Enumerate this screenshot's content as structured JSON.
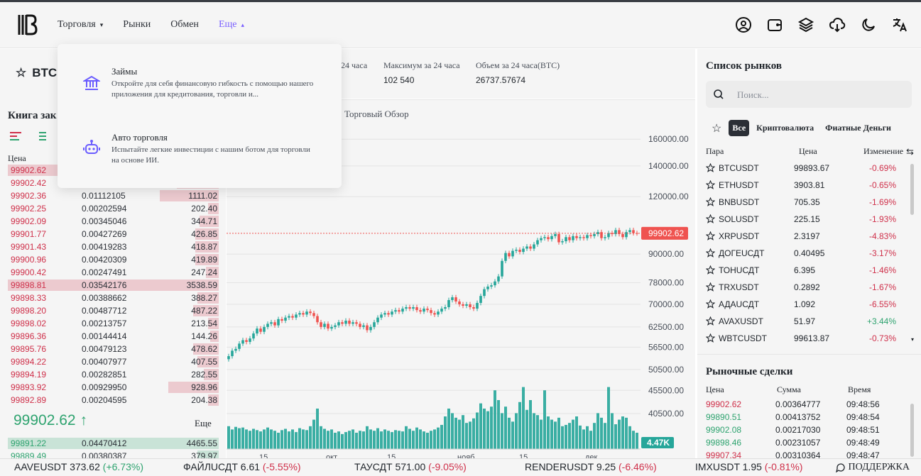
{
  "header": {
    "nav": [
      {
        "label": "Торговля",
        "chevron": "▾"
      },
      {
        "label": "Рынки"
      },
      {
        "label": "Обмен"
      },
      {
        "label": "Еще",
        "chevron": "▴"
      }
    ],
    "icons": [
      "user-circle-icon",
      "wallet-icon",
      "layers-icon",
      "cloud-download-icon",
      "moon-icon",
      "translate-icon"
    ]
  },
  "dropdown": {
    "items": [
      {
        "title": "Займы",
        "desc": "Откройте для себя финансовую гибкость с помощью нашего приложения для кредитования, торговли и..."
      },
      {
        "title": "Авто торговля",
        "desc": "Испытайте легкие инвестиции с нашим ботом для торговли на основе ИИ."
      }
    ]
  },
  "pair": {
    "name": "BTC"
  },
  "stats": [
    {
      "label": "24 часа",
      "value": ""
    },
    {
      "label": "Максимум за 24 часа",
      "value": "102 540"
    },
    {
      "label": "Объем за 24 часа(BTC)",
      "value": "26737.57674"
    }
  ],
  "orderbook": {
    "title": "Книга зак",
    "price_header": "Цена",
    "asks": [
      {
        "price": "99902.62",
        "amount": "",
        "total": "",
        "bar": 1.0
      },
      {
        "price": "99902.42",
        "amount": "",
        "total": "",
        "bar": 0.2
      },
      {
        "price": "99902.36",
        "amount": "0.01112105",
        "total": "1111.02",
        "bar": 0.28
      },
      {
        "price": "99902.25",
        "amount": "0.00202594",
        "total": "202.40",
        "bar": 0.05
      },
      {
        "price": "99902.09",
        "amount": "0.00345046",
        "total": "344.71",
        "bar": 0.09
      },
      {
        "price": "99901.77",
        "amount": "0.00427269",
        "total": "426.85",
        "bar": 0.11
      },
      {
        "price": "99901.43",
        "amount": "0.00419283",
        "total": "418.87",
        "bar": 0.11
      },
      {
        "price": "99900.96",
        "amount": "0.00420309",
        "total": "419.89",
        "bar": 0.11
      },
      {
        "price": "99900.42",
        "amount": "0.00247491",
        "total": "247.24",
        "bar": 0.06
      },
      {
        "price": "99898.81",
        "amount": "0.03542176",
        "total": "3538.59",
        "bar": 1.0
      },
      {
        "price": "99898.33",
        "amount": "0.00388662",
        "total": "388.27",
        "bar": 0.1
      },
      {
        "price": "99898.20",
        "amount": "0.00487712",
        "total": "487.22",
        "bar": 0.12
      },
      {
        "price": "99898.02",
        "amount": "0.00213757",
        "total": "213.54",
        "bar": 0.05
      },
      {
        "price": "99896.36",
        "amount": "0.00144414",
        "total": "144.26",
        "bar": 0.04
      },
      {
        "price": "99895.76",
        "amount": "0.00479123",
        "total": "478.62",
        "bar": 0.12
      },
      {
        "price": "99894.22",
        "amount": "0.00407977",
        "total": "407.55",
        "bar": 0.1
      },
      {
        "price": "99894.19",
        "amount": "0.00282851",
        "total": "282.55",
        "bar": 0.07
      },
      {
        "price": "99893.92",
        "amount": "0.00929950",
        "total": "928.96",
        "bar": 0.24
      },
      {
        "price": "99892.89",
        "amount": "0.00204595",
        "total": "204.38",
        "bar": 0.05
      }
    ],
    "mid_price": "99902.62",
    "more_label": "Еще",
    "bids": [
      {
        "price": "99891.22",
        "amount": "0.04470412",
        "total": "4465.55",
        "bar": 1.0
      },
      {
        "price": "99889.49",
        "amount": "0.00380387",
        "total": "379.97",
        "bar": 0.1
      }
    ]
  },
  "chart": {
    "tab_label": "Торговый Обзор",
    "last_price": "99902.62",
    "volume_label": "4.47K",
    "y_ticks": [
      "160000.00",
      "140000.00",
      "120000.00",
      "90000.00",
      "78000.00",
      "70000.00",
      "62500.00",
      "56500.00",
      "50500.00",
      "45500.00",
      "40500.00"
    ],
    "x_ticks": [
      "15",
      "окт",
      "15",
      "нояб",
      "15",
      "дек"
    ]
  },
  "chart_data": {
    "type": "candlestick",
    "title": "",
    "y_scale": "log",
    "ylim": [
      38000,
      175000
    ],
    "closes": [
      54000,
      55500,
      56000,
      57500,
      58500,
      58000,
      59000,
      60500,
      62000,
      61000,
      62500,
      63500,
      64000,
      63000,
      65000,
      64500,
      65500,
      66000,
      65500,
      66500,
      67000,
      66500,
      67500,
      67000,
      66000,
      64000,
      62500,
      63500,
      62000,
      62500,
      63000,
      64000,
      63500,
      64500,
      63500,
      64000,
      63500,
      62500,
      63000,
      61500,
      62500,
      64000,
      65500,
      66500,
      67000,
      66500,
      67500,
      68000,
      67500,
      68500,
      69000,
      68500,
      69000,
      68000,
      67500,
      68500,
      68000,
      67000,
      66500,
      67500,
      68500,
      69000,
      71500,
      72500,
      71000,
      70000,
      69500,
      70000,
      69000,
      68500,
      70500,
      73000,
      75500,
      76500,
      77000,
      78500,
      80500,
      87000,
      90500,
      89000,
      91500,
      92000,
      91000,
      92500,
      93500,
      92500,
      94500,
      96500,
      97500,
      98000,
      97000,
      98500,
      99500,
      95500,
      96000,
      98000,
      96500,
      98500,
      97500,
      98000,
      97500,
      99000,
      98500,
      99500,
      100500,
      97500,
      98000,
      100000,
      99500,
      101500,
      99500,
      98000,
      100500,
      101500,
      100000,
      99902.62
    ],
    "volumes": [
      0.35,
      0.3,
      0.34,
      0.32,
      0.33,
      0.3,
      0.28,
      0.31,
      0.29,
      0.27,
      0.3,
      0.33,
      0.3,
      0.28,
      0.25,
      0.29,
      0.31,
      0.27,
      0.3,
      0.26,
      0.32,
      0.3,
      0.29,
      0.35,
      0.45,
      0.62,
      0.35,
      0.31,
      0.28,
      0.3,
      0.25,
      0.27,
      0.23,
      0.26,
      0.28,
      0.3,
      0.25,
      0.28,
      0.27,
      0.35,
      0.3,
      0.28,
      0.32,
      0.27,
      0.3,
      0.28,
      0.26,
      0.29,
      0.28,
      0.27,
      0.35,
      0.31,
      0.28,
      0.33,
      0.3,
      0.27,
      0.25,
      0.28,
      0.3,
      0.33,
      0.37,
      0.5,
      0.62,
      0.55,
      0.48,
      0.45,
      0.52,
      0.4,
      0.42,
      0.47,
      0.56,
      0.7,
      0.62,
      0.58,
      0.65,
      0.9,
      0.75,
      0.55,
      0.65,
      0.48,
      0.42,
      0.55,
      0.72,
      0.95,
      0.6,
      0.75,
      0.55,
      0.52,
      0.45,
      0.9,
      0.5,
      0.45,
      0.42,
      0.48,
      0.35,
      0.37,
      0.4,
      0.45,
      0.5,
      0.36,
      0.3,
      0.35,
      0.28,
      0.4,
      0.55,
      0.48,
      0.4,
      0.95,
      0.55,
      0.38,
      0.45,
      0.5,
      0.48,
      0.35,
      0.28,
      0.25
    ]
  },
  "markets": {
    "title": "Список рынков",
    "search_placeholder": "Поиск...",
    "filters": [
      "Все",
      "Криптовалюта",
      "Фиатные Деньги"
    ],
    "headers": [
      "Пара",
      "Цена",
      "Изменение"
    ],
    "rows": [
      {
        "sym": "BTCUSDT",
        "price": "99893.67",
        "chg": "-0.69%",
        "up": false
      },
      {
        "sym": "ETHUSDT",
        "price": "3903.81",
        "chg": "-0.65%",
        "up": false
      },
      {
        "sym": "BNBUSDT",
        "price": "705.35",
        "chg": "-1.69%",
        "up": false
      },
      {
        "sym": "SOLUSDT",
        "price": "225.15",
        "chg": "-1.93%",
        "up": false
      },
      {
        "sym": "XRPUSDT",
        "price": "2.3197",
        "chg": "-4.83%",
        "up": false
      },
      {
        "sym": "ДОГЕUСДТ",
        "price": "0.40495",
        "chg": "-3.17%",
        "up": false
      },
      {
        "sym": "ТОНUСДТ",
        "price": "6.395",
        "chg": "-1.46%",
        "up": false
      },
      {
        "sym": "TRXUSDT",
        "price": "0.2892",
        "chg": "-1.67%",
        "up": false
      },
      {
        "sym": "АДАUСДТ",
        "price": "1.092",
        "chg": "-6.55%",
        "up": false
      },
      {
        "sym": "AVAXUSDT",
        "price": "51.97",
        "chg": "+3.44%",
        "up": true
      },
      {
        "sym": "WBTCUSDT",
        "price": "99613.87",
        "chg": "-0.73%",
        "up": false
      }
    ]
  },
  "trades": {
    "title": "Рыночные сделки",
    "headers": [
      "Цена",
      "Сумма",
      "Время"
    ],
    "rows": [
      {
        "price": "99902.62",
        "amount": "0.00364777",
        "time": "09:48:56",
        "up": false
      },
      {
        "price": "99890.51",
        "amount": "0.00413752",
        "time": "09:48:54",
        "up": true
      },
      {
        "price": "99902.08",
        "amount": "0.00217030",
        "time": "09:48:51",
        "up": true
      },
      {
        "price": "99898.46",
        "amount": "0.00231057",
        "time": "09:48:49",
        "up": true
      },
      {
        "price": "99907.34",
        "amount": "0.00310364",
        "time": "09:48:47",
        "up": false
      }
    ]
  },
  "ticker": {
    "items": [
      {
        "sym": "AAVEUSDT",
        "price": "373.62",
        "chg": "(+6.73%)",
        "up": true
      },
      {
        "sym": "ФАЙЛUСДТ",
        "price": "6.61",
        "chg": "(-5.55%)",
        "up": false
      },
      {
        "sym": "ТАУСДТ",
        "price": "571.00",
        "chg": "(-9.05%)",
        "up": false
      },
      {
        "sym": "RENDERUSDT",
        "price": "9.25",
        "chg": "(-6.46%)",
        "up": false
      },
      {
        "sym": "IMXUSDT",
        "price": "1.95",
        "chg": "(-0.81%)",
        "up": false
      }
    ],
    "support_label": "ПОДДЕРЖКА"
  }
}
